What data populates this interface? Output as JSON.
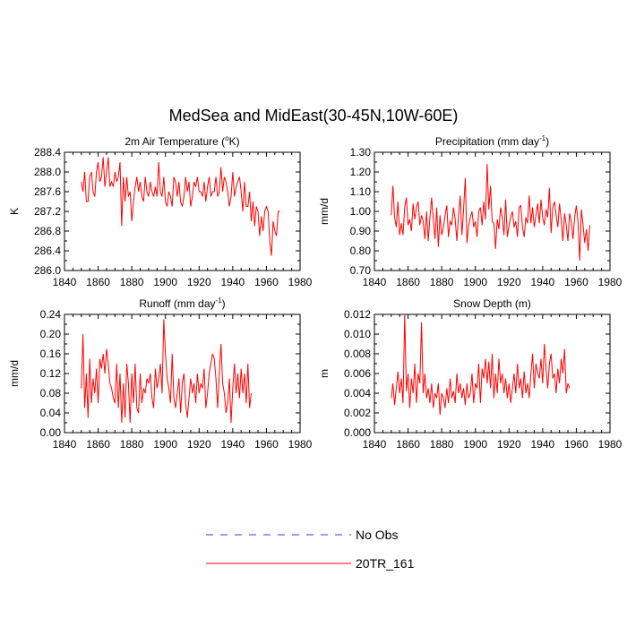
{
  "title": "MedSea and MidEast(30-45N,10W-60E)",
  "legend": [
    {
      "label": "No Obs",
      "color": "#3333ff",
      "style": "dashed"
    },
    {
      "label": "20TR_161",
      "color": "#ff0000",
      "style": "solid"
    }
  ],
  "series_color": "#ff0000",
  "chart_data": [
    {
      "type": "line",
      "title_main": "2m Air Temperature (",
      "title_sup": "o",
      "title_end": "K)",
      "ylabel": "K",
      "xlim": [
        1840,
        1980
      ],
      "ylim": [
        286.0,
        288.4
      ],
      "x_ticks": [
        "1840",
        "1860",
        "1880",
        "1900",
        "1920",
        "1940",
        "1960",
        "1980"
      ],
      "y_ticks": [
        "286.0",
        "286.4",
        "286.8",
        "287.2",
        "287.6",
        "288.0",
        "288.4"
      ],
      "x_start": 1850,
      "values": [
        287.8,
        287.6,
        288.0,
        287.4,
        287.4,
        287.9,
        288.0,
        287.6,
        287.5,
        288.0,
        288.2,
        287.8,
        287.9,
        288.3,
        287.7,
        288.0,
        288.3,
        287.7,
        287.8,
        287.7,
        288.0,
        287.8,
        287.9,
        288.2,
        286.9,
        287.9,
        287.4,
        287.9,
        287.5,
        287.6,
        287.0,
        287.4,
        287.7,
        287.9,
        287.6,
        287.8,
        287.5,
        287.4,
        287.9,
        287.6,
        287.5,
        287.8,
        287.6,
        287.5,
        287.7,
        287.5,
        288.2,
        287.6,
        287.5,
        287.9,
        287.4,
        287.3,
        287.6,
        287.5,
        287.3,
        287.9,
        287.8,
        287.5,
        287.8,
        287.4,
        287.3,
        287.5,
        287.9,
        287.6,
        287.8,
        287.3,
        287.5,
        287.8,
        287.7,
        287.9,
        287.6,
        287.6,
        287.5,
        287.8,
        287.4,
        287.7,
        287.9,
        287.5,
        287.6,
        287.6,
        287.9,
        287.5,
        287.6,
        288.1,
        287.6,
        287.9,
        287.8,
        287.6,
        287.3,
        287.5,
        288.0,
        287.5,
        287.7,
        287.8,
        287.9,
        287.6,
        287.2,
        287.8,
        287.3,
        287.3,
        287.6,
        287.0,
        287.4,
        286.9,
        287.3,
        287.2,
        286.7,
        287.1,
        286.8,
        287.2,
        287.3,
        287.2,
        286.6,
        286.3,
        287.0,
        286.8,
        286.7,
        287.2,
        287.2
      ]
    },
    {
      "type": "line",
      "title_main": "Precipitation (mm day",
      "title_sup": "-1",
      "title_end": ")",
      "ylabel": "mm/d",
      "xlim": [
        1840,
        1980
      ],
      "ylim": [
        0.7,
        1.3
      ],
      "x_ticks": [
        "1840",
        "1860",
        "1880",
        "1900",
        "1920",
        "1940",
        "1960",
        "1980"
      ],
      "y_ticks": [
        "0.70",
        "0.80",
        "0.90",
        "1.00",
        "1.10",
        "1.20",
        "1.30"
      ],
      "x_start": 1850,
      "values": [
        0.98,
        1.13,
        0.97,
        0.92,
        1.05,
        0.88,
        0.94,
        0.88,
        1.02,
        1.07,
        0.93,
        0.96,
        0.9,
        1.04,
        0.96,
        1.02,
        1.05,
        0.93,
        0.98,
        0.95,
        0.86,
        1.0,
        0.85,
        0.97,
        1.07,
        0.96,
        0.86,
        1.02,
        0.82,
        0.98,
        0.88,
        0.92,
        0.98,
        1.03,
        0.87,
        0.95,
        0.93,
        1.02,
        0.96,
        0.85,
        0.98,
        1.08,
        0.88,
        1.01,
        1.17,
        0.84,
        0.93,
        0.97,
        1.0,
        0.92,
        0.95,
        0.87,
        1.0,
        1.02,
        0.93,
        1.05,
        0.96,
        1.24,
        1.01,
        1.13,
        0.95,
        0.94,
        0.81,
        0.96,
        0.91,
        1.02,
        0.97,
        0.88,
        1.06,
        0.87,
        0.93,
        0.97,
        1.0,
        0.92,
        0.95,
        0.87,
        1.02,
        1.03,
        0.92,
        0.87,
        0.97,
        0.94,
        1.08,
        0.94,
        1.02,
        0.92,
        0.98,
        1.04,
        0.94,
        1.06,
        0.97,
        0.93,
        1.01,
        0.97,
        1.12,
        0.89,
        1.02,
        1.05,
        0.98,
        0.92,
        1.04,
        0.96,
        0.85,
        0.99,
        0.93,
        0.85,
        0.99,
        0.95,
        0.86,
        0.97,
        1.03,
        0.95,
        0.75,
        1.01,
        0.93,
        0.84,
        0.91,
        0.8,
        0.93
      ]
    },
    {
      "type": "line",
      "title_main": "Runoff (mm day",
      "title_sup": "-1",
      "title_end": ")",
      "ylabel": "mm/d",
      "xlim": [
        1840,
        1980
      ],
      "ylim": [
        0.0,
        0.24
      ],
      "x_ticks": [
        "1840",
        "1860",
        "1880",
        "1900",
        "1920",
        "1940",
        "1960",
        "1980"
      ],
      "y_ticks": [
        "0.00",
        "0.04",
        "0.08",
        "0.12",
        "0.16",
        "0.20",
        "0.24"
      ],
      "x_start": 1850,
      "values": [
        0.09,
        0.2,
        0.05,
        0.12,
        0.03,
        0.15,
        0.06,
        0.11,
        0.08,
        0.13,
        0.06,
        0.15,
        0.13,
        0.16,
        0.12,
        0.17,
        0.14,
        0.1,
        0.09,
        0.07,
        0.06,
        0.14,
        0.05,
        0.12,
        0.02,
        0.1,
        0.03,
        0.14,
        0.1,
        0.02,
        0.12,
        0.06,
        0.14,
        0.05,
        0.04,
        0.12,
        0.06,
        0.09,
        0.08,
        0.11,
        0.1,
        0.12,
        0.07,
        0.05,
        0.13,
        0.09,
        0.11,
        0.14,
        0.08,
        0.23,
        0.16,
        0.11,
        0.09,
        0.06,
        0.16,
        0.07,
        0.05,
        0.08,
        0.11,
        0.04,
        0.1,
        0.12,
        0.06,
        0.03,
        0.07,
        0.11,
        0.08,
        0.1,
        0.06,
        0.12,
        0.08,
        0.1,
        0.09,
        0.13,
        0.05,
        0.08,
        0.12,
        0.14,
        0.16,
        0.15,
        0.11,
        0.05,
        0.12,
        0.18,
        0.1,
        0.08,
        0.04,
        0.06,
        0.11,
        0.02,
        0.09,
        0.14,
        0.08,
        0.12,
        0.07,
        0.13,
        0.08,
        0.12,
        0.06,
        0.14,
        0.05,
        0.08
      ]
    },
    {
      "type": "line",
      "title_main": "Snow Depth (m)",
      "title_sup": "",
      "title_end": "",
      "ylabel": "m",
      "xlim": [
        1840,
        1980
      ],
      "ylim": [
        0.0,
        0.012
      ],
      "x_ticks": [
        "1840",
        "1860",
        "1880",
        "1900",
        "1920",
        "1940",
        "1960",
        "1980"
      ],
      "y_ticks": [
        "0.000",
        "0.002",
        "0.004",
        "0.006",
        "0.008",
        "0.010",
        "0.012"
      ],
      "x_start": 1850,
      "values": [
        0.0035,
        0.005,
        0.0028,
        0.0045,
        0.0062,
        0.004,
        0.0055,
        0.003,
        0.012,
        0.0042,
        0.006,
        0.0025,
        0.0055,
        0.004,
        0.007,
        0.003,
        0.006,
        0.005,
        0.0112,
        0.004,
        0.006,
        0.0035,
        0.0045,
        0.003,
        0.005,
        0.0025,
        0.004,
        0.0035,
        0.005,
        0.0018,
        0.004,
        0.0035,
        0.0025,
        0.0045,
        0.003,
        0.0055,
        0.0035,
        0.0042,
        0.003,
        0.006,
        0.004,
        0.005,
        0.0035,
        0.0045,
        0.0028,
        0.005,
        0.0035,
        0.004,
        0.006,
        0.003,
        0.005,
        0.0045,
        0.007,
        0.003,
        0.0065,
        0.0055,
        0.0075,
        0.005,
        0.0072,
        0.0045,
        0.008,
        0.0035,
        0.006,
        0.004,
        0.0075,
        0.005,
        0.006,
        0.004,
        0.0055,
        0.0035,
        0.005,
        0.003,
        0.0045,
        0.006,
        0.004,
        0.007,
        0.0045,
        0.0055,
        0.0035,
        0.0062,
        0.004,
        0.005,
        0.0035,
        0.006,
        0.008,
        0.0045,
        0.007,
        0.006,
        0.0055,
        0.0075,
        0.005,
        0.009,
        0.0065,
        0.0045,
        0.007,
        0.008,
        0.0055,
        0.006,
        0.004,
        0.0065,
        0.005,
        0.0075,
        0.006,
        0.0085,
        0.004,
        0.005,
        0.0045
      ]
    }
  ]
}
